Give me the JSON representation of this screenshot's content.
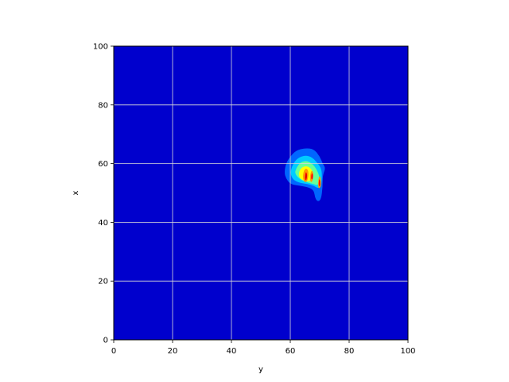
{
  "chart_data": {
    "type": "heatmap",
    "subtype": "filled-contour",
    "title": "",
    "xlabel": "y",
    "ylabel": "x",
    "xlim": [
      0,
      100
    ],
    "ylim": [
      0,
      100
    ],
    "xticks": [
      0,
      20,
      40,
      60,
      80,
      100
    ],
    "yticks": [
      0,
      20,
      40,
      60,
      80,
      100
    ],
    "grid": true,
    "colormap": "jet",
    "colors": {
      "background": "#0000cd",
      "grid": "#d8d8d8",
      "levels": [
        "#0000cd",
        "#0066ff",
        "#00ccff",
        "#66ff99",
        "#ffff00",
        "#ff9900",
        "#ff0000",
        "#cc0000"
      ]
    },
    "contours": [
      {
        "level": 1,
        "color": "#0066ff",
        "points": [
          [
            58,
            57
          ],
          [
            58.5,
            60
          ],
          [
            60,
            62.5
          ],
          [
            62,
            64.5
          ],
          [
            65,
            65.3
          ],
          [
            68,
            65
          ],
          [
            70,
            62.5
          ],
          [
            71,
            60
          ],
          [
            72,
            58.5
          ],
          [
            71,
            56
          ],
          [
            71,
            52
          ],
          [
            70.5,
            48
          ],
          [
            69.5,
            47
          ],
          [
            68.5,
            48
          ],
          [
            68,
            51
          ],
          [
            66,
            52
          ],
          [
            63,
            52.5
          ],
          [
            60,
            53
          ],
          [
            58.5,
            55
          ]
        ]
      },
      {
        "level": 2,
        "color": "#00ccff",
        "points": [
          [
            60,
            56.5
          ],
          [
            60.5,
            59
          ],
          [
            62,
            61.5
          ],
          [
            64.5,
            62.8
          ],
          [
            67,
            62.5
          ],
          [
            69,
            60.5
          ],
          [
            70.5,
            58.5
          ],
          [
            70.8,
            56
          ],
          [
            70.5,
            52.5
          ],
          [
            69.5,
            51.5
          ],
          [
            68,
            52.5
          ],
          [
            66,
            53
          ],
          [
            63,
            53.5
          ],
          [
            61,
            54.5
          ]
        ]
      },
      {
        "level": 3,
        "color": "#66ff99",
        "points": [
          [
            61.5,
            56.5
          ],
          [
            62,
            58.5
          ],
          [
            63.5,
            60.5
          ],
          [
            65.5,
            61
          ],
          [
            67.5,
            60
          ],
          [
            69,
            58
          ],
          [
            70,
            55.5
          ],
          [
            69.5,
            52.5
          ],
          [
            68,
            53
          ],
          [
            66,
            53.5
          ],
          [
            63.5,
            54.5
          ]
        ]
      },
      {
        "level": 4,
        "color": "#ffff00",
        "points": [
          [
            62.8,
            56.5
          ],
          [
            63.5,
            58.5
          ],
          [
            65.5,
            59.3
          ],
          [
            67.3,
            58.2
          ],
          [
            67.8,
            56
          ],
          [
            67,
            54
          ],
          [
            65,
            54
          ],
          [
            63.2,
            55
          ]
        ]
      },
      {
        "level": 5,
        "color": "#ff9900",
        "points": [
          [
            64.2,
            55
          ],
          [
            64.6,
            57.8
          ],
          [
            65.6,
            58.5
          ],
          [
            66.3,
            57
          ],
          [
            65.9,
            54.2
          ],
          [
            65,
            53.5
          ]
        ]
      },
      {
        "level": 5,
        "color": "#ff9900",
        "points": [
          [
            66.6,
            55.5
          ],
          [
            67.2,
            57.8
          ],
          [
            67.9,
            57
          ],
          [
            67.6,
            54
          ],
          [
            66.9,
            53.6
          ]
        ]
      },
      {
        "level": 5,
        "color": "#ff9900",
        "points": [
          [
            69.4,
            52
          ],
          [
            69.6,
            55.5
          ],
          [
            70.3,
            55.8
          ],
          [
            70.5,
            52.5
          ],
          [
            69.9,
            51.5
          ]
        ]
      },
      {
        "level": 6,
        "color": "#ff0000",
        "points": [
          [
            64.9,
            54.6
          ],
          [
            65.2,
            57.4
          ],
          [
            65.8,
            56.4
          ],
          [
            65.5,
            54.2
          ]
        ]
      },
      {
        "level": 6,
        "color": "#ff0000",
        "points": [
          [
            67,
            55
          ],
          [
            67.3,
            57
          ],
          [
            67.8,
            56
          ],
          [
            67.5,
            54.4
          ]
        ]
      },
      {
        "level": 6,
        "color": "#ff0000",
        "points": [
          [
            69.6,
            52.5
          ],
          [
            69.8,
            55
          ],
          [
            70.2,
            54
          ],
          [
            70.1,
            52.2
          ]
        ]
      },
      {
        "level": 7,
        "color": "#cc0000",
        "points": [
          [
            65.1,
            55.2
          ],
          [
            65.35,
            56.8
          ],
          [
            65.6,
            55.8
          ],
          [
            65.4,
            54.8
          ]
        ]
      }
    ]
  }
}
